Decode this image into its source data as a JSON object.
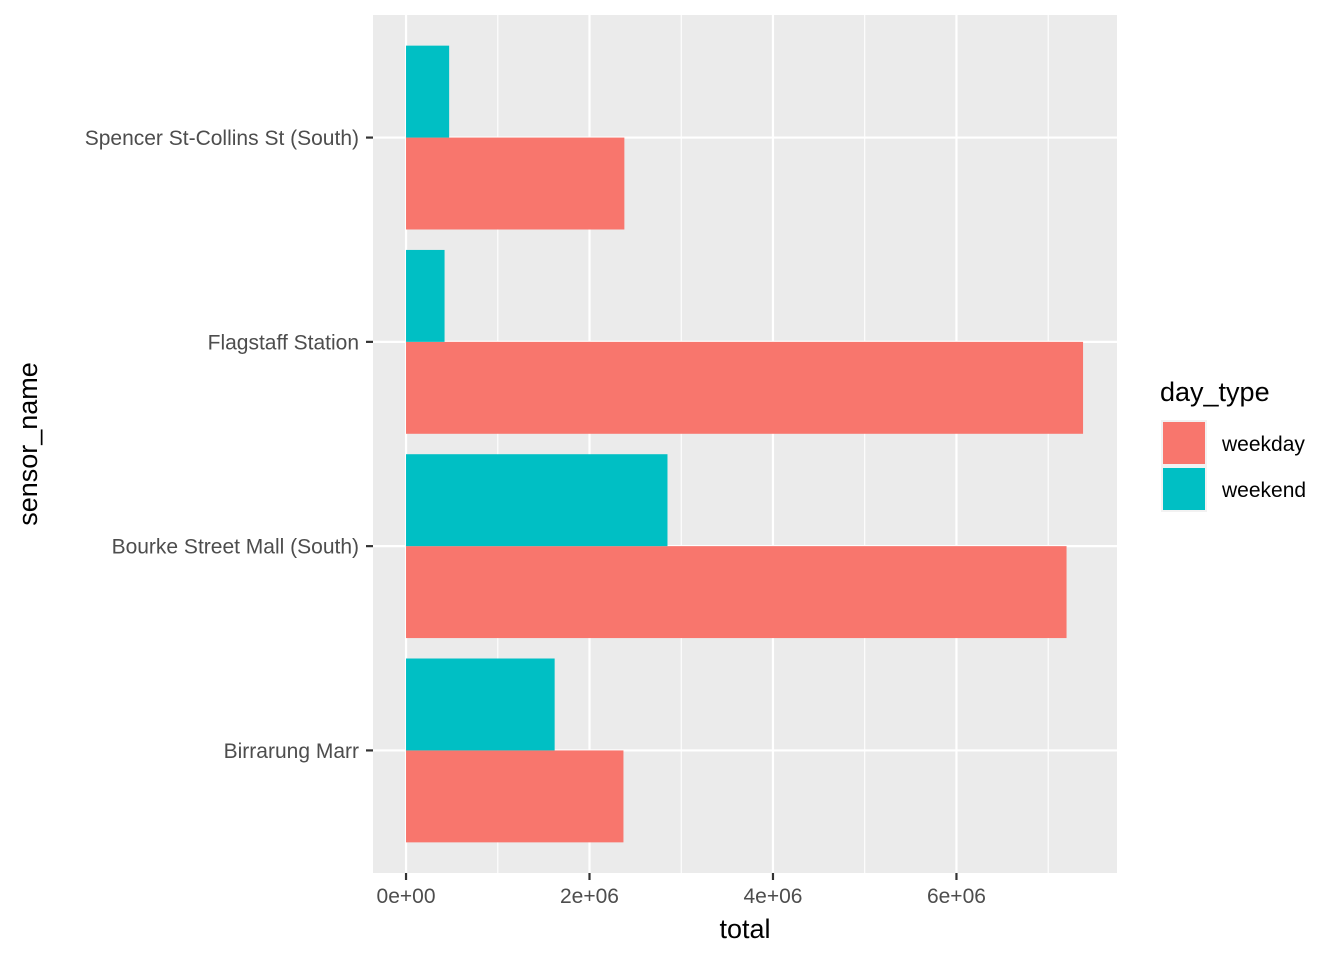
{
  "chart_data": {
    "type": "bar",
    "orientation": "horizontal",
    "position": "dodge",
    "categories": [
      "Birrarung Marr",
      "Bourke Street Mall (South)",
      "Flagstaff Station",
      "Spencer St-Collins St (South)"
    ],
    "series": [
      {
        "name": "weekday",
        "color": "#F8766D",
        "values": [
          2370000,
          7200000,
          7380000,
          2380000
        ]
      },
      {
        "name": "weekend",
        "color": "#00BFC4",
        "values": [
          1620000,
          2850000,
          420000,
          470000
        ]
      }
    ],
    "xlabel": "total",
    "ylabel": "sensor_name",
    "xlim": [
      -360000,
      7750000
    ],
    "x_ticks": [
      0,
      2000000,
      4000000,
      6000000
    ],
    "x_tick_labels": [
      "0e+00",
      "2e+06",
      "4e+06",
      "6e+06"
    ],
    "legend": {
      "title": "day_type",
      "position": "right",
      "labels": [
        "weekday",
        "weekend"
      ]
    },
    "grid": true,
    "panel_background": "#EBEBEB",
    "grid_color": "#FFFFFF"
  }
}
